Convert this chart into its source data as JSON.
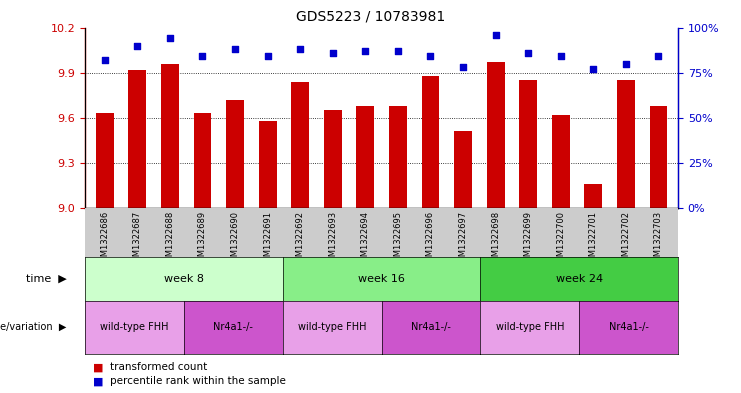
{
  "title": "GDS5223 / 10783981",
  "samples": [
    "GSM1322686",
    "GSM1322687",
    "GSM1322688",
    "GSM1322689",
    "GSM1322690",
    "GSM1322691",
    "GSM1322692",
    "GSM1322693",
    "GSM1322694",
    "GSM1322695",
    "GSM1322696",
    "GSM1322697",
    "GSM1322698",
    "GSM1322699",
    "GSM1322700",
    "GSM1322701",
    "GSM1322702",
    "GSM1322703"
  ],
  "bar_values": [
    9.63,
    9.92,
    9.96,
    9.63,
    9.72,
    9.58,
    9.84,
    9.65,
    9.68,
    9.68,
    9.88,
    9.51,
    9.97,
    9.85,
    9.62,
    9.16,
    9.85,
    9.68
  ],
  "dot_values": [
    82,
    90,
    94,
    84,
    88,
    84,
    88,
    86,
    87,
    87,
    84,
    78,
    96,
    86,
    84,
    77,
    80,
    84
  ],
  "bar_color": "#cc0000",
  "dot_color": "#0000cc",
  "ylim_left": [
    9.0,
    10.2
  ],
  "ylim_right": [
    0,
    100
  ],
  "yticks_left": [
    9.0,
    9.3,
    9.6,
    9.9,
    10.2
  ],
  "yticks_right": [
    0,
    25,
    50,
    75,
    100
  ],
  "grid_lines": [
    9.3,
    9.6,
    9.9
  ],
  "baseline": 9.0,
  "week8_color": "#ccffcc",
  "week16_color": "#88ee88",
  "week24_color": "#44cc44",
  "wt_color": "#e8a0e8",
  "nr_color": "#cc55cc",
  "xtick_bg": "#cccccc",
  "wt_label": "wild-type FHH",
  "nr_label": "Nr4a1-/-",
  "time_label": "time",
  "geno_label": "genotype/variation",
  "legend_bar": "transformed count",
  "legend_dot": "percentile rank within the sample",
  "tick_label_color_left": "#cc0000",
  "tick_label_color_right": "#0000cc"
}
